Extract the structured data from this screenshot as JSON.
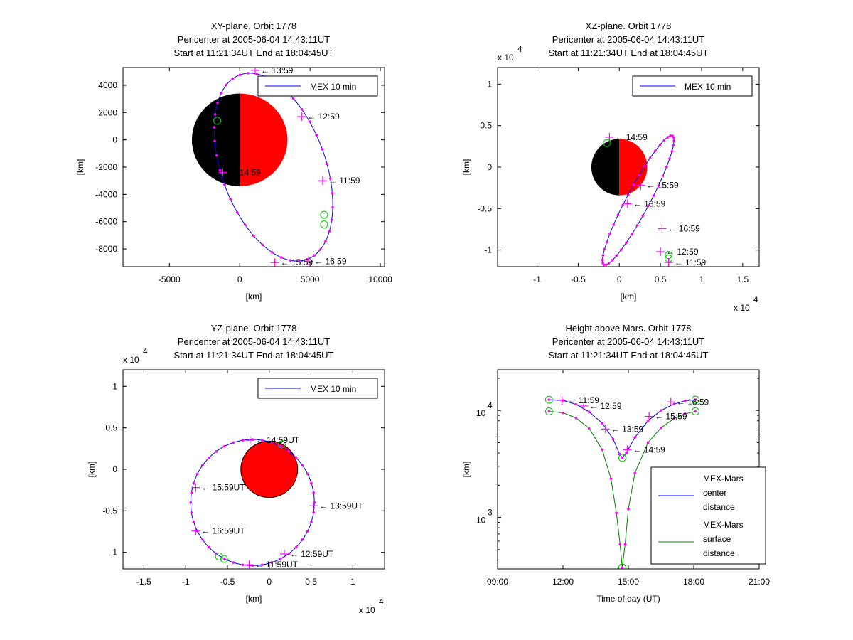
{
  "chart_data": [
    {
      "type": "line",
      "id": "xy",
      "title": [
        "XY-plane.  Orbit 1778",
        "Pericenter at 2005-06-04 14:43:11UT",
        "Start at 11:21:34UT End at 18:04:45UT"
      ],
      "xlabel": "[km]",
      "ylabel": "[km]",
      "xlim": [
        -8300,
        10300
      ],
      "ylim": [
        -9300,
        5300
      ],
      "xticks": [
        -5000,
        0,
        5000,
        10000
      ],
      "xtick_labels": [
        "-5000",
        "0",
        "5000",
        "10000"
      ],
      "yticks": [
        4000,
        2000,
        0,
        -2000,
        -4000,
        -6000,
        -8000
      ],
      "ytick_labels": [
        "4000",
        "2000",
        "0",
        "-2000",
        "-4000",
        "-6000",
        "-8000"
      ],
      "legend": [
        "MEX 10 min"
      ],
      "legend_position": "top-right",
      "planet": {
        "cx": 0,
        "cy": 0,
        "rx": 3400,
        "ry": 3400,
        "day_side": "right",
        "night": "#000000",
        "day": "#ff0000"
      },
      "orbit": {
        "cx": 2400,
        "cy": -2000,
        "a": 3700,
        "b": 7200,
        "rot_deg": -20,
        "color": "#0000ff"
      },
      "labels": [
        {
          "t": "13:59",
          "x": 1100,
          "y": 5100
        },
        {
          "t": "12:59",
          "x": 4400,
          "y": 1700
        },
        {
          "t": "11:59",
          "x": 5900,
          "y": -3000
        },
        {
          "t": "14:59",
          "x": -1200,
          "y": -2400
        },
        {
          "t": "15:59",
          "x": 2500,
          "y": -9000
        },
        {
          "t": "16:59",
          "x": 4900,
          "y": -8900
        }
      ],
      "start_end": [
        {
          "x": 6000,
          "y": -5500
        },
        {
          "x": 6000,
          "y": -6200
        }
      ],
      "pericenter": {
        "x": -1600,
        "y": 1400
      }
    },
    {
      "type": "line",
      "id": "xz",
      "title": [
        "XZ-plane.  Orbit 1778",
        "Pericenter at 2005-06-04 14:43:11UT",
        "Start at 11:21:34UT End at 18:04:45UT"
      ],
      "xlabel": "[km]",
      "ylabel": "[km]",
      "multiplier_x": "x 10",
      "multiplier_y": "x 10",
      "multiplier_exp": "4",
      "xlim": [
        -1.48,
        1.7
      ],
      "ylim": [
        -1.2,
        1.2
      ],
      "xticks": [
        -1,
        -0.5,
        0,
        0.5,
        1,
        1.5
      ],
      "xtick_labels": [
        "-1",
        "-0.5",
        "0",
        "0.5",
        "1",
        "1.5"
      ],
      "yticks": [
        1,
        0.5,
        0,
        -0.5,
        -1
      ],
      "ytick_labels": [
        "1",
        "0.5",
        "0",
        "-0.5",
        "-1"
      ],
      "legend": [
        "MEX 10 min"
      ],
      "legend_position": "top-right",
      "planet": {
        "cx": 0,
        "cy": 0,
        "rx": 0.34,
        "ry": 0.34,
        "day_side": "right",
        "night": "#000000",
        "day": "#ff0000"
      },
      "orbit": {
        "cx": 0.23,
        "cy": -0.4,
        "a": 0.14,
        "b": 0.88,
        "rot_deg": 28,
        "color": "#0000ff"
      },
      "labels": [
        {
          "t": "14:59",
          "x": -0.12,
          "y": 0.36
        },
        {
          "t": "15:59",
          "x": 0.26,
          "y": -0.22
        },
        {
          "t": "13:59",
          "x": 0.1,
          "y": -0.44
        },
        {
          "t": "16:59",
          "x": 0.52,
          "y": -0.74
        },
        {
          "t": "12:59",
          "x": 0.5,
          "y": -1.02
        },
        {
          "t": "11:59",
          "x": 0.6,
          "y": -1.15
        }
      ],
      "start_end": [
        {
          "x": 0.6,
          "y": -1.06
        },
        {
          "x": 0.6,
          "y": -1.1
        }
      ],
      "pericenter": {
        "x": -0.15,
        "y": 0.29
      }
    },
    {
      "type": "line",
      "id": "yz",
      "title": [
        "YZ-plane.  Orbit 1778",
        "Pericenter at 2005-06-04 14:43:11UT",
        "Start at 11:21:34UT End at 18:04:45UT"
      ],
      "xlabel": "[km]",
      "ylabel": "[km]",
      "multiplier_x": "x 10",
      "multiplier_y": "x 10",
      "multiplier_exp": "4",
      "xlim": [
        -1.75,
        1.38
      ],
      "ylim": [
        -1.2,
        1.2
      ],
      "xticks": [
        -1.5,
        -1,
        -0.5,
        0,
        0.5,
        1
      ],
      "xtick_labels": [
        "-1.5",
        "-1",
        "-0.5",
        "0",
        "0.5",
        "1"
      ],
      "yticks": [
        1,
        0.5,
        0,
        -0.5,
        -1
      ],
      "ytick_labels": [
        "1",
        "0.5",
        "0",
        "-0.5",
        "-1"
      ],
      "legend": [
        "MEX 10 min"
      ],
      "legend_position": "top-right",
      "planet": {
        "cx": 0,
        "cy": 0,
        "rx": 0.34,
        "ry": 0.34,
        "day_side": "full",
        "night": "#000000",
        "day": "#ff0000"
      },
      "orbit": {
        "cx": -0.2,
        "cy": -0.4,
        "a": 0.74,
        "b": 0.76,
        "rot_deg": 0,
        "color": "#0000ff"
      },
      "labels": [
        {
          "t": "14:59UT",
          "x": -0.23,
          "y": 0.35
        },
        {
          "t": "15:59UT",
          "x": -0.88,
          "y": -0.22
        },
        {
          "t": "13:59UT",
          "x": 0.53,
          "y": -0.44
        },
        {
          "t": "16:59UT",
          "x": -0.88,
          "y": -0.74
        },
        {
          "t": "12:59UT",
          "x": 0.18,
          "y": -1.02
        },
        {
          "t": "11:59UT",
          "x": -0.24,
          "y": -1.15
        }
      ],
      "start_end": [
        {
          "x": -0.6,
          "y": -1.05
        },
        {
          "x": -0.54,
          "y": -1.08
        }
      ],
      "pericenter": {
        "x": 0.15,
        "y": 0.3
      }
    },
    {
      "type": "line",
      "id": "height",
      "title": [
        "Height above Mars.  Orbit 1778",
        "Pericenter at 2005-06-04 14:43:11UT",
        "Start at 11:21:34UT End at 18:04:45UT"
      ],
      "xlabel": "Time of day (UT)",
      "ylabel": "[km]",
      "yscale": "log",
      "xlim": [
        9,
        21
      ],
      "ylim": [
        330,
        24000
      ],
      "xticks": [
        9,
        12,
        15,
        18,
        21
      ],
      "xtick_labels": [
        "09:00",
        "12:00",
        "15:00",
        "18:00",
        "21:00"
      ],
      "yticks": [
        1000,
        10000
      ],
      "ytick_base": "10",
      "ytick_exps": [
        "3",
        "4"
      ],
      "legend": [
        "MEX-Mars center distance",
        "MEX-Mars surface distance"
      ],
      "legend_lines": [
        [
          "MEX-Mars",
          "center",
          "distance"
        ],
        [
          "MEX-Mars",
          "surface",
          "distance"
        ]
      ],
      "legend_position": "bottom-right",
      "series": [
        {
          "name": "MEX-Mars center distance",
          "color": "#0000ff",
          "x": [
            11.36,
            12.0,
            12.6,
            13.2,
            13.8,
            14.3,
            14.6,
            14.72,
            14.9,
            15.3,
            15.9,
            16.5,
            17.1,
            17.6,
            18.08
          ],
          "values": [
            12600,
            12400,
            11400,
            9700,
            7600,
            5400,
            3900,
            3600,
            4000,
            5600,
            8000,
            10000,
            11500,
            12300,
            12600
          ]
        },
        {
          "name": "MEX-Mars surface distance",
          "color": "#008000",
          "x": [
            11.36,
            12.0,
            12.6,
            13.2,
            13.8,
            14.2,
            14.45,
            14.62,
            14.72,
            14.85,
            15.0,
            15.3,
            15.9,
            16.5,
            17.1,
            17.6,
            18.08
          ],
          "values": [
            9800,
            9500,
            8500,
            6800,
            4300,
            2300,
            1100,
            560,
            340,
            560,
            1200,
            2600,
            5000,
            6900,
            8400,
            9300,
            9800
          ]
        }
      ],
      "labels": [
        {
          "t": "11:59",
          "x": 11.95,
          "y": 12400
        },
        {
          "t": "12:59",
          "x": 12.95,
          "y": 11000
        },
        {
          "t": "13:59",
          "x": 13.95,
          "y": 6700
        },
        {
          "t": "14:59",
          "x": 14.95,
          "y": 4300
        },
        {
          "t": "15:59",
          "x": 15.95,
          "y": 8800
        },
        {
          "t": "16:59",
          "x": 16.95,
          "y": 12000
        }
      ]
    }
  ]
}
